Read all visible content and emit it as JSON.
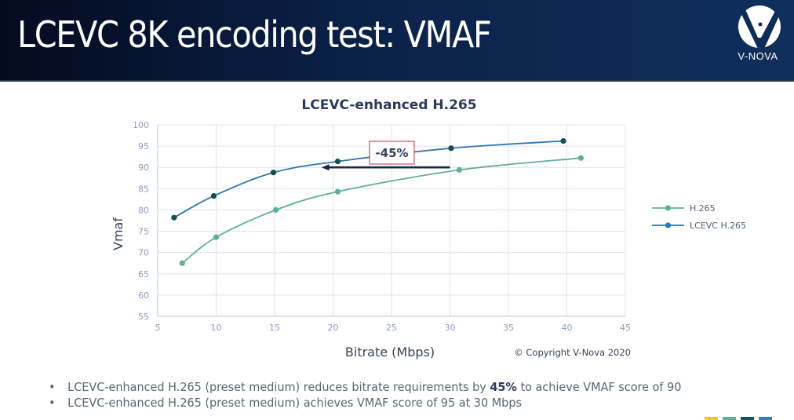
{
  "slide": {
    "title": "LCEVC 8K encoding test: VMAF",
    "logo_text": "V-NOVA",
    "copyright": "© Copyright V-Nova 2020",
    "bullets": [
      {
        "before": "LCEVC-enhanced H.265 (preset medium) reduces bitrate requirements by ",
        "bold": "45%",
        "after": " to achieve VMAF score of 90"
      },
      {
        "before": "LCEVC-enhanced H.265 (preset medium) achieves VMAF score of 95 at 30 Mbps",
        "bold": "",
        "after": ""
      }
    ],
    "footer_colors": [
      "#f5c518",
      "#5eb09a",
      "#125558",
      "#2f7fc1"
    ]
  },
  "chart_data": {
    "type": "line",
    "title": "LCEVC-enhanced H.265",
    "xlabel": "Bitrate (Mbps)",
    "ylabel": "Vmaf",
    "xlim": [
      5,
      45
    ],
    "ylim": [
      55,
      100
    ],
    "xticks": [
      5,
      10,
      15,
      20,
      25,
      30,
      35,
      40,
      45
    ],
    "yticks": [
      55,
      60,
      65,
      70,
      75,
      80,
      85,
      90,
      95,
      100
    ],
    "grid": true,
    "legend_position": "right",
    "series": [
      {
        "name": "H.265",
        "color": "#5eb09a",
        "marker_color": "#5eb09a",
        "x": [
          7.1,
          10.0,
          15.1,
          20.4,
          30.8,
          41.2
        ],
        "y": [
          67.5,
          73.6,
          80.0,
          84.3,
          89.4,
          92.2
        ]
      },
      {
        "name": "LCEVC H.265",
        "color": "#2f77b0",
        "marker_color": "#14504f",
        "x": [
          6.4,
          9.8,
          14.9,
          20.4,
          30.1,
          39.7
        ],
        "y": [
          78.2,
          83.3,
          88.8,
          91.4,
          94.5,
          96.2
        ]
      }
    ],
    "annotation": {
      "text": "-45%",
      "arrow_from": [
        30,
        90
      ],
      "arrow_to": [
        19,
        90
      ],
      "border_color": "#c0555a"
    }
  }
}
